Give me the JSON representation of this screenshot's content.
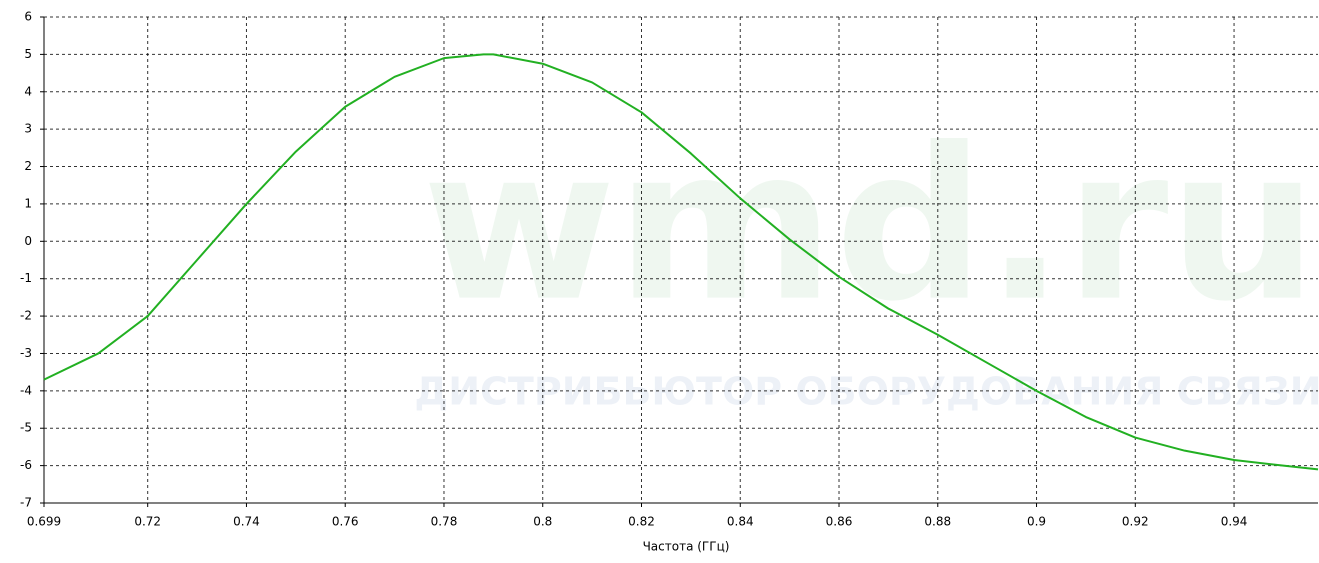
{
  "chart_data": {
    "type": "line",
    "x_label": "Частота (ГГц)",
    "annotations": [
      "wmd.ru",
      "ДИСТРИБЬЮТОР ОБОРУДОВАНИЯ СВЯЗИ"
    ],
    "x": [
      0.699,
      0.71,
      0.72,
      0.73,
      0.74,
      0.75,
      0.76,
      0.77,
      0.78,
      0.788,
      0.79,
      0.8,
      0.81,
      0.82,
      0.83,
      0.84,
      0.85,
      0.86,
      0.87,
      0.88,
      0.89,
      0.9,
      0.91,
      0.92,
      0.93,
      0.94,
      0.95,
      0.957
    ],
    "values": [
      -3.7,
      -3.0,
      -2.0,
      -0.5,
      1.0,
      2.4,
      3.6,
      4.4,
      4.9,
      5.0,
      5.0,
      4.75,
      4.25,
      3.45,
      2.35,
      1.15,
      0.05,
      -0.95,
      -1.8,
      -2.5,
      -3.25,
      -4.0,
      -4.7,
      -5.25,
      -5.6,
      -5.85,
      -6.0,
      -6.1
    ],
    "color": "#22b022",
    "xlim": [
      0.699,
      0.957
    ],
    "xticks": [
      0.699,
      0.72,
      0.74,
      0.76,
      0.78,
      0.8,
      0.82,
      0.84,
      0.86,
      0.88,
      0.9,
      0.92,
      0.94
    ],
    "ylim": [
      -7,
      6
    ],
    "yticks": [
      6,
      5,
      4,
      3,
      2,
      1,
      0,
      -1,
      -2,
      -3,
      -4,
      -5,
      -6,
      -7
    ],
    "grid": true
  }
}
